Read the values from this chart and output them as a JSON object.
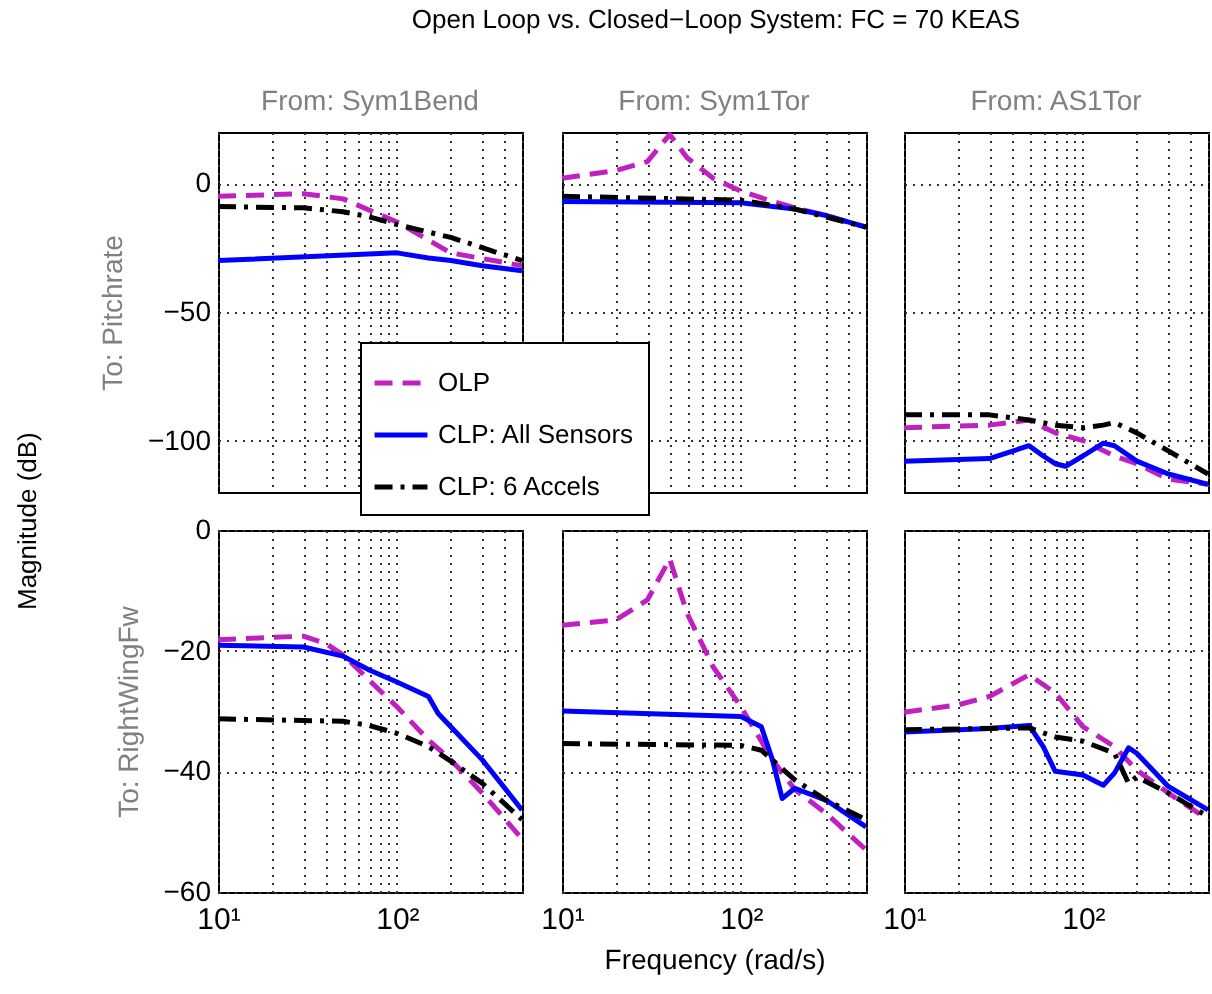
{
  "chart_data": [
    {
      "type": "line",
      "title": "Open Loop vs. Closed−Loop System: FC = 70 KEAS",
      "subtitle": "From: Sym1Bend",
      "ylabel": "To: Pitchrate",
      "annotations": [
        "Magnitude (dB)"
      ],
      "log": "x",
      "grid": true,
      "legend": "bottom right",
      "tick_labels": "y",
      "xlim": [
        10,
        500
      ],
      "ylim": [
        -120,
        20
      ],
      "xticks": [
        10,
        20,
        30,
        40,
        50,
        60,
        70,
        80,
        90,
        100,
        200,
        300,
        400,
        500
      ],
      "yticks": [
        {
          "value": -100,
          "label": "−100"
        },
        {
          "value": -50,
          "label": "−50"
        },
        0
      ],
      "series": [
        {
          "name": "OLP",
          "color": "#c020c0",
          "line_style": "dashed",
          "x": [
            10,
            30,
            50,
            100,
            200,
            500
          ],
          "values": [
            -5,
            -4,
            -6,
            -15,
            -27,
            -32
          ]
        },
        {
          "name": "CLP: All Sensors",
          "color": "#0000ff",
          "line_style": "solid",
          "x": [
            10,
            100,
            150,
            200,
            300,
            500
          ],
          "values": [
            -30,
            -27,
            -29,
            -30,
            -32,
            -34
          ]
        },
        {
          "name": "CLP: 6 Accels",
          "color": "#000000",
          "line_style": "dashdot",
          "x": [
            10,
            30,
            50,
            70,
            100,
            200,
            300,
            500
          ],
          "values": [
            -9,
            -9.5,
            -11,
            -13,
            -16,
            -21,
            -25,
            -30
          ]
        }
      ]
    },
    {
      "type": "line",
      "subtitle": "From: Sym1Tor",
      "log": "x",
      "grid": true,
      "tick_labels": false,
      "xlim": [
        10,
        500
      ],
      "ylim": [
        -120,
        20
      ],
      "xticks": [
        10,
        20,
        30,
        40,
        50,
        60,
        70,
        80,
        90,
        100,
        200,
        300,
        400,
        500
      ],
      "yticks": [
        -100,
        -50,
        0
      ],
      "series": [
        {
          "color": "#c020c0",
          "line_style": "dashed",
          "x": [
            10,
            20,
            30,
            40,
            50,
            70,
            100,
            150,
            200,
            300,
            500
          ],
          "values": [
            2,
            5,
            8.5,
            19,
            10,
            2,
            -3,
            -7,
            -9.5,
            -12.5,
            -17
          ]
        },
        {
          "color": "#0000ff",
          "line_style": "solid",
          "x": [
            10,
            100,
            200,
            300,
            500
          ],
          "values": [
            -7,
            -7.5,
            -10,
            -12.5,
            -17
          ]
        },
        {
          "color": "#000000",
          "line_style": "dashdot",
          "x": [
            10,
            100,
            200,
            500
          ],
          "values": [
            -5,
            -6.5,
            -10,
            -17
          ]
        }
      ]
    },
    {
      "type": "line",
      "subtitle": "From: AS1Tor",
      "log": "x",
      "grid": true,
      "tick_labels": false,
      "xlim": [
        10,
        500
      ],
      "ylim": [
        -120,
        20
      ],
      "xticks": [
        10,
        20,
        30,
        40,
        50,
        60,
        70,
        80,
        90,
        100,
        200,
        300,
        400,
        500
      ],
      "yticks": [
        -100,
        -50,
        0
      ],
      "series": [
        {
          "color": "#c020c0",
          "line_style": "dashed",
          "x": [
            10,
            30,
            50,
            70,
            100,
            150,
            200,
            300,
            500
          ],
          "values": [
            -95,
            -94,
            -92,
            -97,
            -100,
            -106,
            -109,
            -115,
            -117
          ]
        },
        {
          "color": "#0000ff",
          "line_style": "solid",
          "x": [
            10,
            30,
            50,
            60,
            70,
            80,
            100,
            130,
            150,
            200,
            300,
            500
          ],
          "values": [
            -108,
            -107,
            -102,
            -106,
            -109,
            -110,
            -106,
            -101,
            -102,
            -108,
            -113,
            -117
          ]
        },
        {
          "color": "#000000",
          "line_style": "dashdot",
          "x": [
            10,
            30,
            50,
            70,
            100,
            130,
            150,
            200,
            300,
            500
          ],
          "values": [
            -90,
            -90,
            -92,
            -94,
            -95,
            -94,
            -93,
            -97,
            -104,
            -113
          ]
        }
      ]
    },
    {
      "type": "line",
      "ylabel": "To: RightWingFw",
      "log": "x",
      "grid": true,
      "xlim": [
        10,
        500
      ],
      "ylim": [
        -60,
        0
      ],
      "xticks": [
        {
          "value": 10,
          "label": "10¹"
        },
        {
          "value": 20,
          "label": null
        },
        {
          "value": 30,
          "label": null
        },
        {
          "value": 40,
          "label": null
        },
        {
          "value": 50,
          "label": null
        },
        {
          "value": 60,
          "label": null
        },
        {
          "value": 70,
          "label": null
        },
        {
          "value": 80,
          "label": null
        },
        {
          "value": 90,
          "label": null
        },
        {
          "value": 100,
          "label": "10²"
        },
        {
          "value": 200,
          "label": null
        },
        {
          "value": 300,
          "label": null
        },
        {
          "value": 400,
          "label": null
        },
        {
          "value": 500,
          "label": null
        }
      ],
      "yticks": [
        {
          "value": -60,
          "label": "−60"
        },
        {
          "value": -40,
          "label": "−40"
        },
        {
          "value": -20,
          "label": "−20"
        },
        0
      ],
      "series": [
        {
          "color": "#c020c0",
          "line_style": "dashed",
          "x": [
            10,
            20,
            30,
            40,
            50,
            70,
            100,
            150,
            200,
            300,
            500
          ],
          "values": [
            -18.2,
            -17.8,
            -17.6,
            -18.8,
            -20.7,
            -24.9,
            -29.3,
            -34.8,
            -38.1,
            -43.6,
            -51.2
          ]
        },
        {
          "color": "#0000ff",
          "line_style": "solid",
          "x": [
            10,
            30,
            50,
            70,
            100,
            150,
            170,
            200,
            300,
            500
          ],
          "values": [
            -19.1,
            -19.4,
            -20.9,
            -23.2,
            -25.2,
            -27.6,
            -30.4,
            -32.6,
            -38.1,
            -46.4
          ]
        },
        {
          "color": "#000000",
          "line_style": "dashdot",
          "x": [
            10,
            50,
            70,
            100,
            150,
            200,
            300,
            500
          ],
          "values": [
            -31.3,
            -31.7,
            -32.4,
            -33.7,
            -35.9,
            -38.3,
            -42,
            -48
          ]
        }
      ]
    },
    {
      "type": "line",
      "xlabel": "Frequency  (rad/s)",
      "log": "x",
      "grid": true,
      "tick_labels": "x",
      "xlim": [
        10,
        500
      ],
      "ylim": [
        -60,
        0
      ],
      "xticks": [
        {
          "value": 10,
          "label": "10¹"
        },
        {
          "value": 20,
          "label": null
        },
        {
          "value": 30,
          "label": null
        },
        {
          "value": 40,
          "label": null
        },
        {
          "value": 50,
          "label": null
        },
        {
          "value": 60,
          "label": null
        },
        {
          "value": 70,
          "label": null
        },
        {
          "value": 80,
          "label": null
        },
        {
          "value": 90,
          "label": null
        },
        {
          "value": 100,
          "label": "10²"
        },
        {
          "value": 200,
          "label": null
        },
        {
          "value": 300,
          "label": null
        },
        {
          "value": 400,
          "label": null
        },
        {
          "value": 500,
          "label": null
        }
      ],
      "yticks": [
        -60,
        -40,
        -20,
        0
      ],
      "series": [
        {
          "color": "#c020c0",
          "line_style": "dashed",
          "x": [
            10,
            20,
            30,
            40,
            50,
            70,
            100,
            150,
            200,
            300,
            500
          ],
          "values": [
            -15.8,
            -14.9,
            -11.6,
            -4.8,
            -13.8,
            -22.7,
            -29.3,
            -38.1,
            -43,
            -47,
            -53
          ]
        },
        {
          "color": "#0000ff",
          "line_style": "solid",
          "x": [
            10,
            100,
            130,
            150,
            170,
            200,
            300,
            500
          ],
          "values": [
            -30,
            -30.9,
            -32.6,
            -38.1,
            -44.5,
            -42.8,
            -44.8,
            -49.2
          ]
        },
        {
          "color": "#000000",
          "line_style": "dashdot",
          "x": [
            10,
            100,
            130,
            200,
            300,
            500
          ],
          "values": [
            -35.4,
            -35.7,
            -36.5,
            -41.4,
            -44.8,
            -48
          ]
        }
      ]
    },
    {
      "type": "line",
      "log": "x",
      "grid": true,
      "tick_labels": "x",
      "xlim": [
        10,
        500
      ],
      "ylim": [
        -60,
        0
      ],
      "xticks": [
        {
          "value": 10,
          "label": "10¹"
        },
        {
          "value": 20,
          "label": null
        },
        {
          "value": 30,
          "label": null
        },
        {
          "value": 40,
          "label": null
        },
        {
          "value": 50,
          "label": null
        },
        {
          "value": 60,
          "label": null
        },
        {
          "value": 70,
          "label": null
        },
        {
          "value": 80,
          "label": null
        },
        {
          "value": 90,
          "label": null
        },
        {
          "value": 100,
          "label": "10²"
        },
        {
          "value": 200,
          "label": null
        },
        {
          "value": 300,
          "label": null
        },
        {
          "value": 400,
          "label": null
        },
        {
          "value": 500,
          "label": null
        }
      ],
      "yticks": [
        -60,
        -40,
        -20,
        0
      ],
      "series": [
        {
          "color": "#c020c0",
          "line_style": "dashed",
          "x": [
            10,
            20,
            30,
            50,
            70,
            100,
            150,
            200,
            300,
            500
          ],
          "values": [
            -30.2,
            -29,
            -27.6,
            -24,
            -27,
            -32.6,
            -35.9,
            -39.8,
            -43.6,
            -48
          ]
        },
        {
          "color": "#0000ff",
          "line_style": "solid",
          "x": [
            10,
            30,
            50,
            60,
            70,
            100,
            130,
            150,
            180,
            200,
            300,
            500
          ],
          "values": [
            -33.5,
            -32.9,
            -32.4,
            -35.9,
            -40,
            -40.6,
            -42.3,
            -40.3,
            -36.1,
            -37,
            -42.5,
            -46.4
          ]
        },
        {
          "color": "#000000",
          "line_style": "dashdot",
          "x": [
            10,
            50,
            70,
            100,
            150,
            180,
            200,
            300,
            500
          ],
          "values": [
            -33.1,
            -32.8,
            -34.3,
            -35,
            -37,
            -42,
            -40.9,
            -43.6,
            -47.5
          ]
        }
      ]
    }
  ]
}
